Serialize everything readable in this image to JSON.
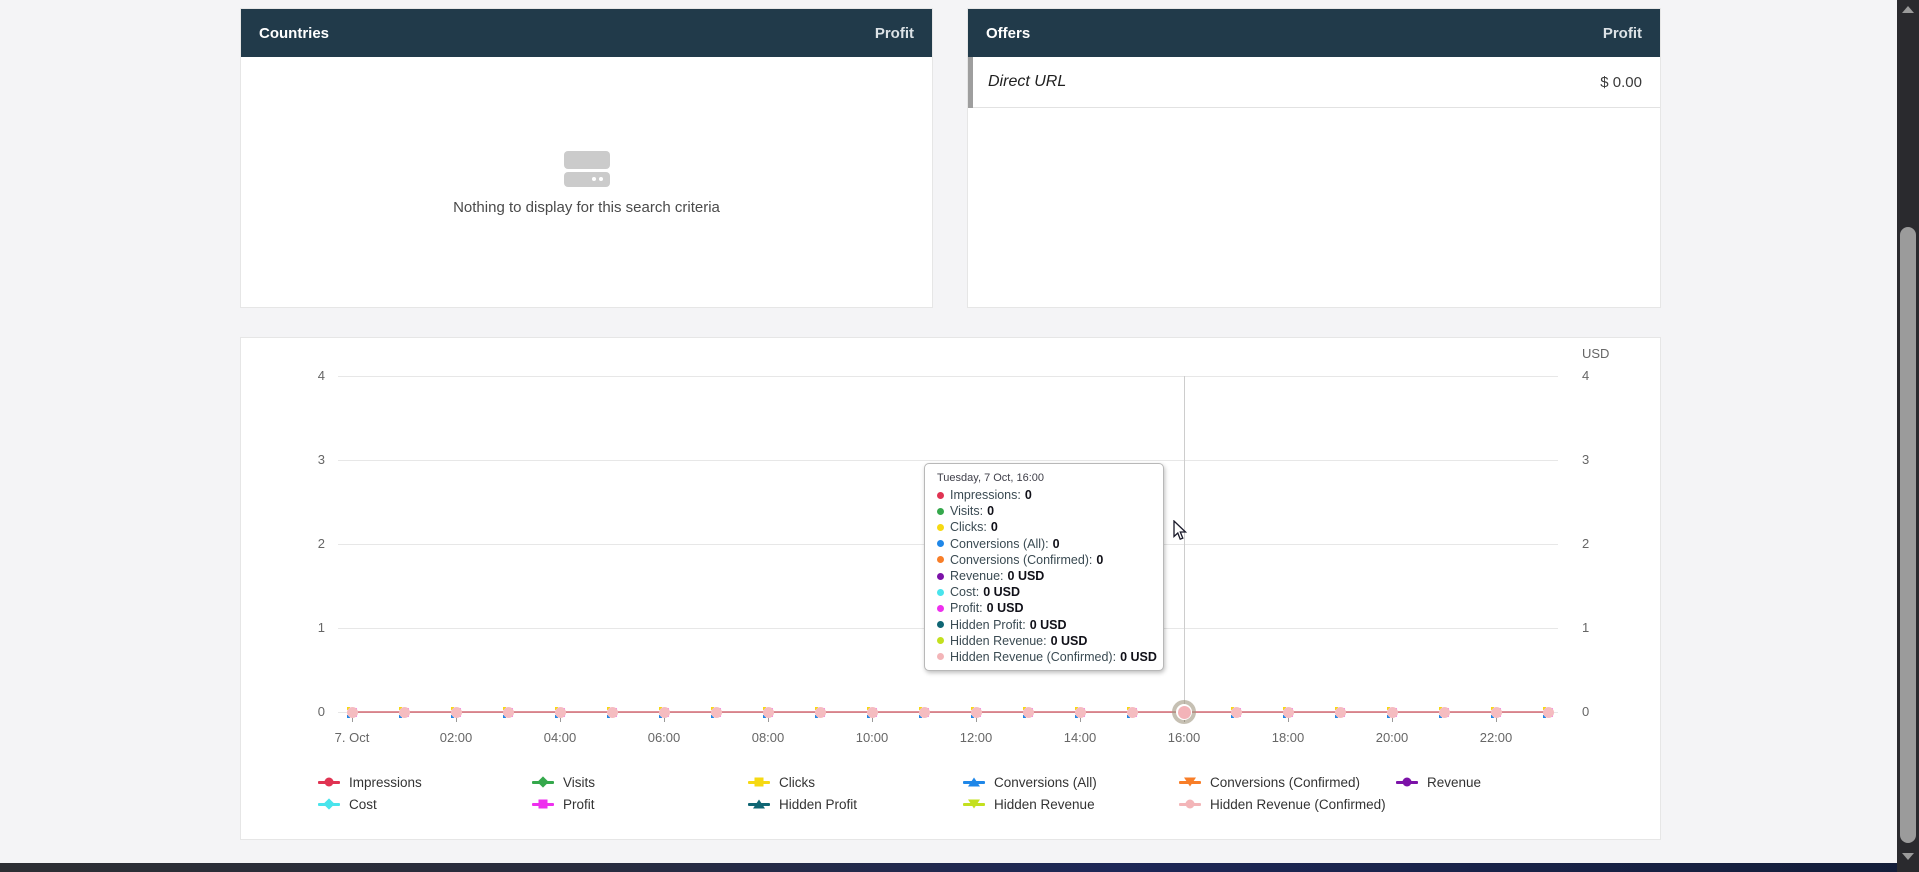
{
  "panels": {
    "countries": {
      "title": "Countries",
      "metric_header": "Profit",
      "empty_message": "Nothing to display for this search criteria"
    },
    "offers": {
      "title": "Offers",
      "metric_header": "Profit",
      "rows": [
        {
          "label": "Direct URL",
          "value": "$ 0.00"
        }
      ]
    }
  },
  "chart": {
    "unit": "USD",
    "y_ticks": [
      "4",
      "3",
      "2",
      "1",
      "0"
    ],
    "x_labels": [
      "7. Oct",
      "02:00",
      "04:00",
      "06:00",
      "08:00",
      "10:00",
      "12:00",
      "14:00",
      "16:00",
      "18:00",
      "20:00",
      "22:00"
    ],
    "marker_count": 24,
    "hover_index": 16
  },
  "tooltip": {
    "title": "Tuesday, 7 Oct, 16:00",
    "items": [
      {
        "label": "Impressions",
        "value": "0",
        "color": "#e03352"
      },
      {
        "label": "Visits",
        "value": "0",
        "color": "#35a84c"
      },
      {
        "label": "Clicks",
        "value": "0",
        "color": "#f6d912"
      },
      {
        "label": "Conversions (All)",
        "value": "0",
        "color": "#1f87e8"
      },
      {
        "label": "Conversions (Confirmed)",
        "value": "0",
        "color": "#f87e28"
      },
      {
        "label": "Revenue",
        "value": "0 USD",
        "color": "#7c12a8"
      },
      {
        "label": "Cost",
        "value": "0 USD",
        "color": "#49e4ec"
      },
      {
        "label": "Profit",
        "value": "0 USD",
        "color": "#ee2fee"
      },
      {
        "label": "Hidden Profit",
        "value": "0 USD",
        "color": "#0f6674"
      },
      {
        "label": "Hidden Revenue",
        "value": "0 USD",
        "color": "#c3e01e"
      },
      {
        "label": "Hidden Revenue (Confirmed)",
        "value": "0 USD",
        "color": "#f3b5b8"
      }
    ]
  },
  "legend": {
    "items": [
      {
        "label": "Impressions",
        "color": "#e03352",
        "shape": "circle"
      },
      {
        "label": "Visits",
        "color": "#35a84c",
        "shape": "diamond"
      },
      {
        "label": "Clicks",
        "color": "#f6d912",
        "shape": "square"
      },
      {
        "label": "Conversions (All)",
        "color": "#1f87e8",
        "shape": "tri-up"
      },
      {
        "label": "Conversions (Confirmed)",
        "color": "#f87e28",
        "shape": "tri-down"
      },
      {
        "label": "Revenue",
        "color": "#7c12a8",
        "shape": "circle"
      },
      {
        "label": "Cost",
        "color": "#49e4ec",
        "shape": "diamond"
      },
      {
        "label": "Profit",
        "color": "#ee2fee",
        "shape": "square"
      },
      {
        "label": "Hidden Profit",
        "color": "#0f6674",
        "shape": "tri-up"
      },
      {
        "label": "Hidden Revenue",
        "color": "#c3e01e",
        "shape": "tri-down"
      },
      {
        "label": "Hidden Revenue (Confirmed)",
        "color": "#f3b5b8",
        "shape": "circle"
      }
    ]
  },
  "chart_data": {
    "type": "line",
    "title": "",
    "xlabel": "",
    "ylabel_right": "USD",
    "ylim": [
      0,
      4
    ],
    "y_ticks": [
      0,
      1,
      2,
      3,
      4
    ],
    "x_date": "7 Oct",
    "x": [
      "00:00",
      "01:00",
      "02:00",
      "03:00",
      "04:00",
      "05:00",
      "06:00",
      "07:00",
      "08:00",
      "09:00",
      "10:00",
      "11:00",
      "12:00",
      "13:00",
      "14:00",
      "15:00",
      "16:00",
      "17:00",
      "18:00",
      "19:00",
      "20:00",
      "21:00",
      "22:00",
      "23:00"
    ],
    "x_tick_labels": [
      "7. Oct",
      "02:00",
      "04:00",
      "06:00",
      "08:00",
      "10:00",
      "12:00",
      "14:00",
      "16:00",
      "18:00",
      "20:00",
      "22:00"
    ],
    "grid": true,
    "legend_position": "bottom",
    "series": [
      {
        "name": "Impressions",
        "values": [
          0,
          0,
          0,
          0,
          0,
          0,
          0,
          0,
          0,
          0,
          0,
          0,
          0,
          0,
          0,
          0,
          0,
          0,
          0,
          0,
          0,
          0,
          0,
          0
        ]
      },
      {
        "name": "Visits",
        "values": [
          0,
          0,
          0,
          0,
          0,
          0,
          0,
          0,
          0,
          0,
          0,
          0,
          0,
          0,
          0,
          0,
          0,
          0,
          0,
          0,
          0,
          0,
          0,
          0
        ]
      },
      {
        "name": "Clicks",
        "values": [
          0,
          0,
          0,
          0,
          0,
          0,
          0,
          0,
          0,
          0,
          0,
          0,
          0,
          0,
          0,
          0,
          0,
          0,
          0,
          0,
          0,
          0,
          0,
          0
        ]
      },
      {
        "name": "Conversions (All)",
        "values": [
          0,
          0,
          0,
          0,
          0,
          0,
          0,
          0,
          0,
          0,
          0,
          0,
          0,
          0,
          0,
          0,
          0,
          0,
          0,
          0,
          0,
          0,
          0,
          0
        ]
      },
      {
        "name": "Conversions (Confirmed)",
        "values": [
          0,
          0,
          0,
          0,
          0,
          0,
          0,
          0,
          0,
          0,
          0,
          0,
          0,
          0,
          0,
          0,
          0,
          0,
          0,
          0,
          0,
          0,
          0,
          0
        ]
      },
      {
        "name": "Revenue",
        "values": [
          0,
          0,
          0,
          0,
          0,
          0,
          0,
          0,
          0,
          0,
          0,
          0,
          0,
          0,
          0,
          0,
          0,
          0,
          0,
          0,
          0,
          0,
          0,
          0
        ]
      },
      {
        "name": "Cost",
        "values": [
          0,
          0,
          0,
          0,
          0,
          0,
          0,
          0,
          0,
          0,
          0,
          0,
          0,
          0,
          0,
          0,
          0,
          0,
          0,
          0,
          0,
          0,
          0,
          0
        ]
      },
      {
        "name": "Profit",
        "values": [
          0,
          0,
          0,
          0,
          0,
          0,
          0,
          0,
          0,
          0,
          0,
          0,
          0,
          0,
          0,
          0,
          0,
          0,
          0,
          0,
          0,
          0,
          0,
          0
        ]
      },
      {
        "name": "Hidden Profit",
        "values": [
          0,
          0,
          0,
          0,
          0,
          0,
          0,
          0,
          0,
          0,
          0,
          0,
          0,
          0,
          0,
          0,
          0,
          0,
          0,
          0,
          0,
          0,
          0,
          0
        ]
      },
      {
        "name": "Hidden Revenue",
        "values": [
          0,
          0,
          0,
          0,
          0,
          0,
          0,
          0,
          0,
          0,
          0,
          0,
          0,
          0,
          0,
          0,
          0,
          0,
          0,
          0,
          0,
          0,
          0,
          0
        ]
      },
      {
        "name": "Hidden Revenue (Confirmed)",
        "values": [
          0,
          0,
          0,
          0,
          0,
          0,
          0,
          0,
          0,
          0,
          0,
          0,
          0,
          0,
          0,
          0,
          0,
          0,
          0,
          0,
          0,
          0,
          0,
          0
        ]
      }
    ]
  }
}
